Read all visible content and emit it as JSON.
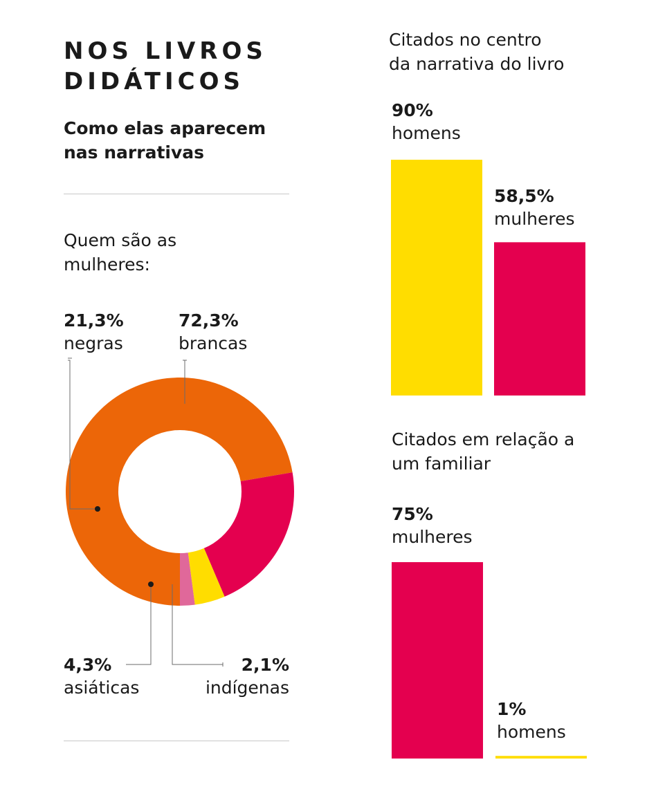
{
  "heading": {
    "line1": "NOS LIVROS",
    "line2": "DIDÁTICOS"
  },
  "subheading": {
    "line1": "Como elas aparecem",
    "line2": "nas narrativas"
  },
  "donut_question": {
    "line1": "Quem são as",
    "line2": "mulheres:"
  },
  "colors": {
    "orange": "#ec6608",
    "crimson": "#e4004f",
    "yellow": "#ffdd00",
    "pink": "#e0689a"
  },
  "chart_data": [
    {
      "type": "pie",
      "title": "Quem são as mulheres:",
      "slices": [
        {
          "pct_label": "72,3%",
          "name": "brancas",
          "value": 72.3,
          "color": "#ec6608"
        },
        {
          "pct_label": "21,3%",
          "name": "negras",
          "value": 21.3,
          "color": "#e4004f"
        },
        {
          "pct_label": "4,3%",
          "name": "asiáticas",
          "value": 4.3,
          "color": "#ffdd00"
        },
        {
          "pct_label": "2,1%",
          "name": "indígenas",
          "value": 2.1,
          "color": "#e0689a"
        }
      ]
    },
    {
      "type": "bar",
      "title_line1": "Citados no centro",
      "title_line2": "da narrativa do livro",
      "bars": [
        {
          "pct_label": "90%",
          "name": "homens",
          "value": 90,
          "color": "#ffdd00"
        },
        {
          "pct_label": "58,5%",
          "name": "mulheres",
          "value": 58.5,
          "color": "#e4004f"
        }
      ]
    },
    {
      "type": "bar",
      "title_line1": "Citados em relação a",
      "title_line2": "um familiar",
      "bars": [
        {
          "pct_label": "75%",
          "name": "mulheres",
          "value": 75,
          "color": "#e4004f"
        },
        {
          "pct_label": "1%",
          "name": "homens",
          "value": 1,
          "color": "#ffdd00"
        }
      ]
    }
  ]
}
